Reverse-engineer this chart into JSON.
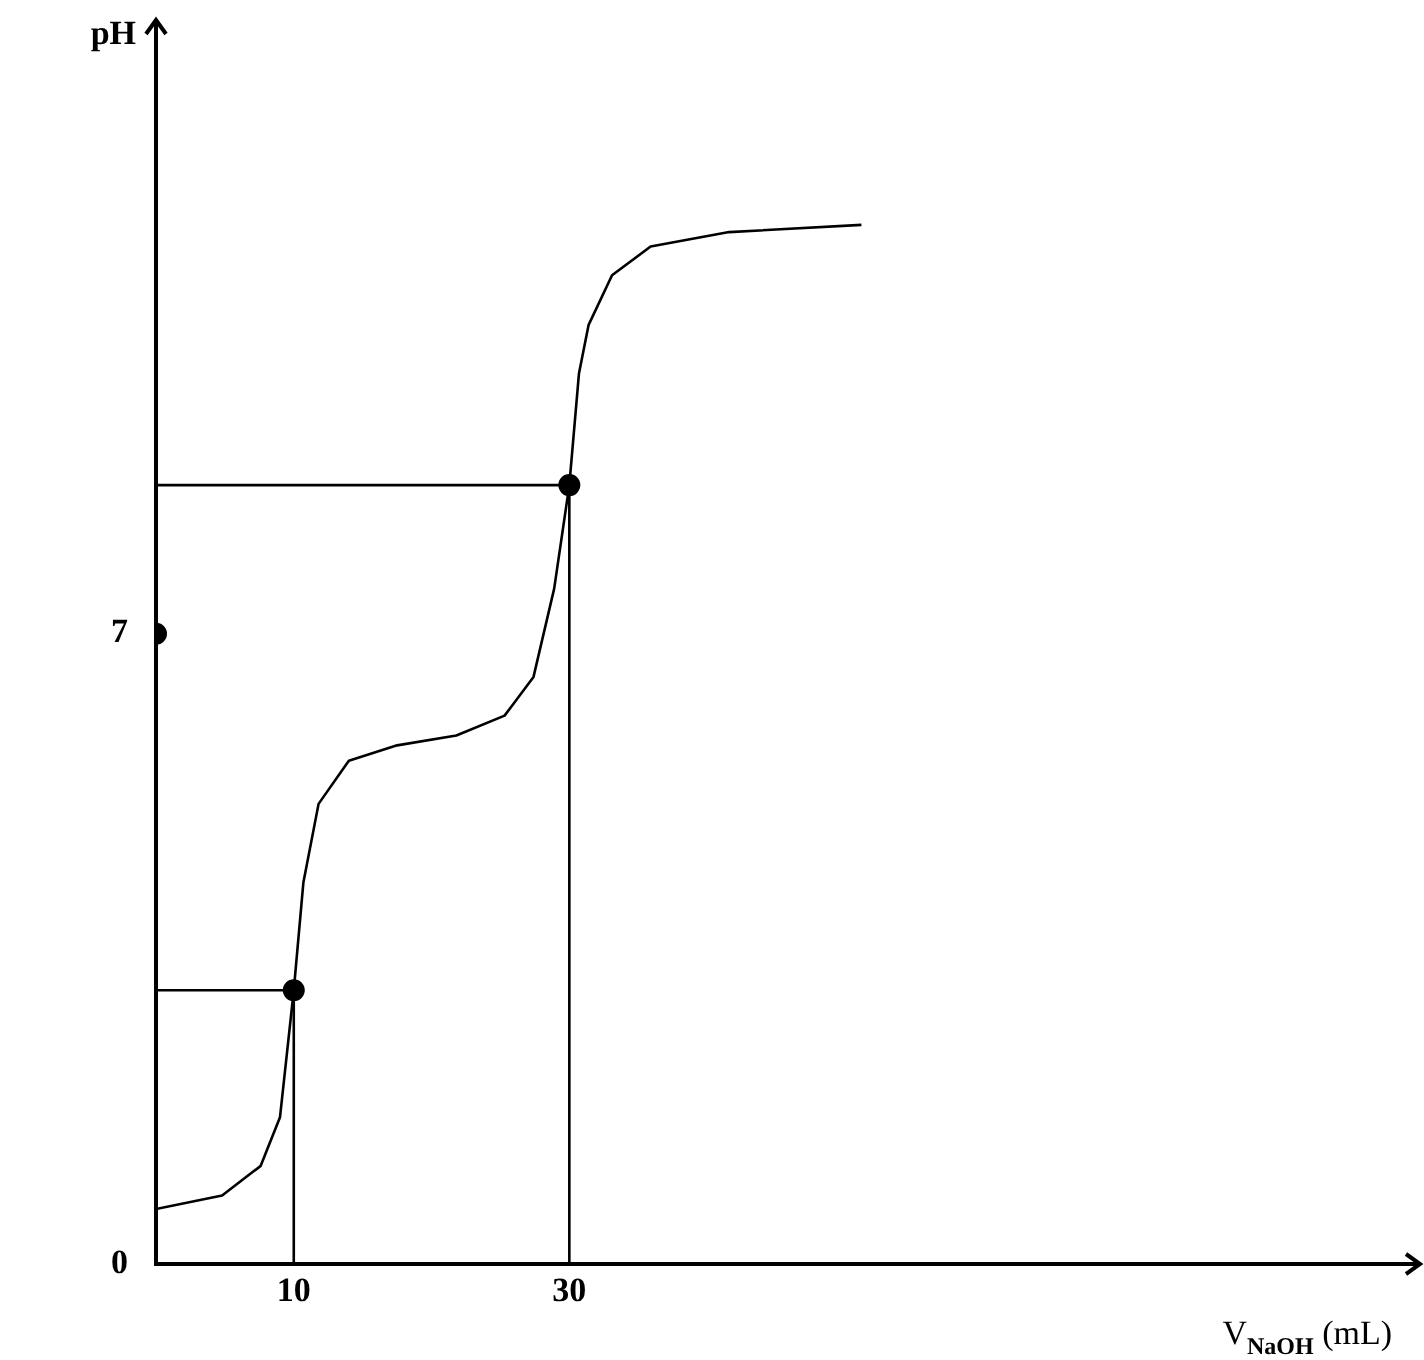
{
  "chart_data": {
    "type": "line",
    "ylabel": "pH",
    "xlabel": "V$_{NaOH}$ (mL)",
    "xlim": [
      0,
      90
    ],
    "ylim": [
      0,
      13.5
    ],
    "xticks": [
      10,
      30
    ],
    "yticks": [
      0,
      7
    ],
    "grid": false,
    "legend": false,
    "series": [
      {
        "type": "line",
        "marker": "none",
        "color": "#000000",
        "x": [
          0,
          4.8,
          7.6,
          9,
          10,
          10.7,
          11.8,
          14,
          17.5,
          21.8,
          25.3,
          27.4,
          28.9,
          30,
          30.7,
          31.4,
          33.1,
          35.9,
          41.6,
          51.2
        ],
        "values": [
          0.61,
          0.76,
          1.09,
          1.63,
          3.04,
          4.24,
          5.11,
          5.59,
          5.76,
          5.87,
          6.09,
          6.52,
          7.5,
          8.65,
          9.89,
          10.43,
          10.98,
          11.3,
          11.46,
          11.54
        ]
      },
      {
        "type": "line",
        "marker": "none",
        "color": "#000000",
        "x": [
          0,
          10,
          10
        ],
        "values": [
          3.04,
          3.04,
          0
        ]
      },
      {
        "type": "line",
        "marker": "none",
        "color": "#000000",
        "x": [
          0,
          30,
          30
        ],
        "values": [
          8.65,
          8.65,
          0
        ]
      },
      {
        "type": "scatter",
        "marker": "circle",
        "color": "#000000",
        "x": [
          0,
          10,
          30
        ],
        "values": [
          7,
          3.04,
          8.65
        ]
      }
    ]
  }
}
